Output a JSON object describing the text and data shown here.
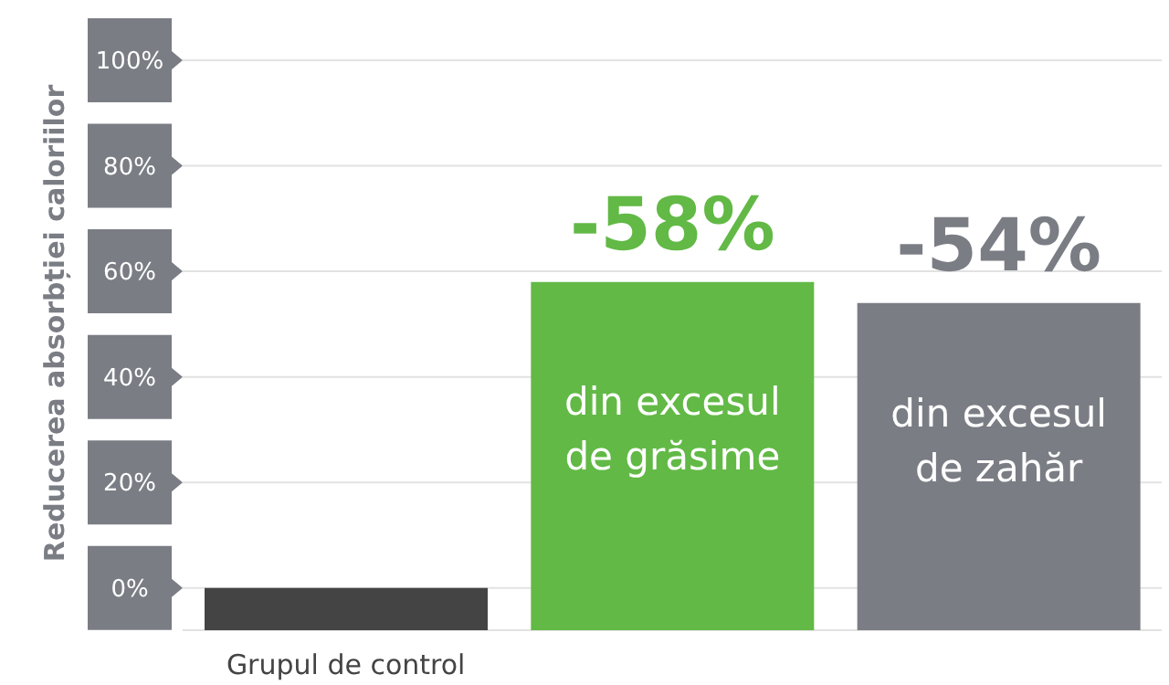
{
  "chart_data": {
    "type": "bar",
    "ylabel": "Reducerea absorbției caloriilor",
    "categories": [
      "Grupul de control",
      "din excesul de grăsime",
      "din excesul de zahăr"
    ],
    "base": [
      -8,
      -8,
      -8
    ],
    "values": [
      8,
      66,
      62
    ],
    "colors": [
      "#444444",
      "#62b946",
      "#7a7d84"
    ],
    "annotations": [
      {
        "text": "-58%",
        "x": "din excesul de grăsime",
        "y": 58
      },
      {
        "text": "-54%",
        "x": "din excesul de zahăr",
        "y": 54
      }
    ],
    "ylim": [
      -8,
      100
    ],
    "yticks": [
      {
        "value": 0,
        "label": "0%"
      },
      {
        "value": 20,
        "label": "20%"
      },
      {
        "value": 40,
        "label": "40%"
      },
      {
        "value": 60,
        "label": "60%"
      },
      {
        "value": 80,
        "label": "80%"
      },
      {
        "value": 100,
        "label": "100%"
      }
    ],
    "grid": "y",
    "legend": false
  }
}
